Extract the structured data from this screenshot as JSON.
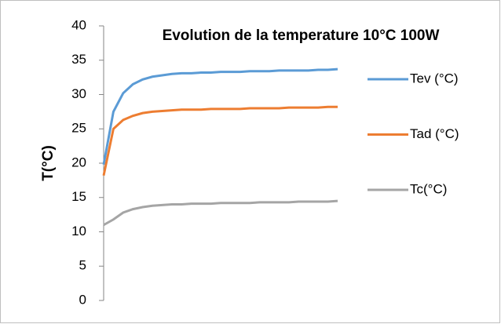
{
  "chart_data": {
    "type": "line",
    "title": "Evolution de la temperature 10°C 100W",
    "y_label": "T(°C)",
    "categories": [
      null,
      null,
      null,
      null,
      null,
      null,
      null,
      null,
      null,
      null,
      null,
      null,
      null,
      null,
      null,
      null,
      null,
      null,
      null,
      null,
      null,
      null,
      null,
      null,
      null
    ],
    "series": [
      {
        "name": "Tev (°C)",
        "color": "#5b9bd5",
        "values": [
          19.8,
          27.5,
          30.2,
          31.5,
          32.2,
          32.6,
          32.8,
          33.0,
          33.1,
          33.1,
          33.2,
          33.2,
          33.3,
          33.3,
          33.3,
          33.4,
          33.4,
          33.4,
          33.5,
          33.5,
          33.5,
          33.5,
          33.6,
          33.6,
          33.7
        ]
      },
      {
        "name": "Tad (°C)",
        "color": "#ed7d31",
        "values": [
          18.2,
          25.0,
          26.3,
          26.9,
          27.3,
          27.5,
          27.6,
          27.7,
          27.8,
          27.8,
          27.8,
          27.9,
          27.9,
          27.9,
          27.9,
          28.0,
          28.0,
          28.0,
          28.0,
          28.1,
          28.1,
          28.1,
          28.1,
          28.2,
          28.2
        ]
      },
      {
        "name": "Tc(°C)",
        "color": "#a5a5a5",
        "values": [
          11.0,
          11.8,
          12.8,
          13.3,
          13.6,
          13.8,
          13.9,
          14.0,
          14.0,
          14.1,
          14.1,
          14.1,
          14.2,
          14.2,
          14.2,
          14.2,
          14.3,
          14.3,
          14.3,
          14.3,
          14.4,
          14.4,
          14.4,
          14.4,
          14.5
        ]
      }
    ],
    "ylim": [
      0,
      40
    ],
    "yticks": [
      0,
      5,
      10,
      15,
      20,
      25,
      30,
      35,
      40
    ],
    "legend": "right"
  }
}
